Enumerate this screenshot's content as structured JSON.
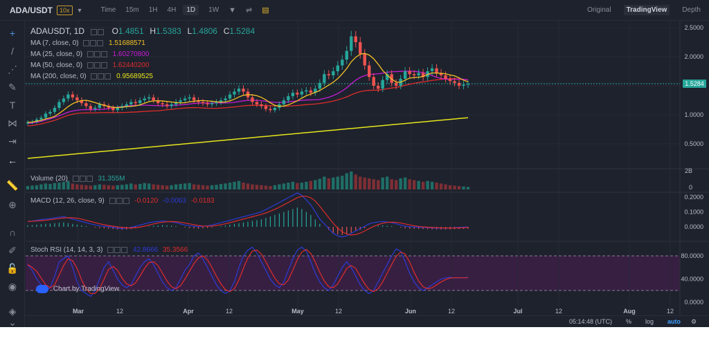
{
  "topbar": {
    "symbol": "ADA/USDT",
    "leverage": "10x",
    "timeframes": [
      "Time",
      "15m",
      "1H",
      "4H",
      "1D",
      "1W"
    ],
    "active_timeframe": "1D",
    "views": [
      "Original",
      "TradingView",
      "Depth"
    ],
    "active_view": "TradingView"
  },
  "legend": {
    "title": "ADAUSDT, 1D",
    "open_label": "O",
    "open": "1.4851",
    "high_label": "H",
    "high": "1.5383",
    "low_label": "L",
    "low": "1.4806",
    "close_label": "C",
    "close": "1.5284",
    "ma": [
      {
        "label": "MA (7, close, 0)",
        "value": "1.51688571",
        "color": "#f7c325"
      },
      {
        "label": "MA (25, close, 0)",
        "value": "1.60270800",
        "color": "#c71bd6"
      },
      {
        "label": "MA (50, close, 0)",
        "value": "1.62440200",
        "color": "#e02c2c"
      },
      {
        "label": "MA (200, close, 0)",
        "value": "0.95689525",
        "color": "#e6e61a"
      }
    ]
  },
  "volume": {
    "label": "Volume (20)",
    "value": "31.355M"
  },
  "macd": {
    "label": "MACD (12, 26, close, 9)",
    "v1": "-0.0120",
    "v2": "-0.0063",
    "v3": "-0.0183"
  },
  "stoch": {
    "label": "Stoch RSI (14, 14, 3, 3)",
    "k": "42.8666",
    "d": "35.3566"
  },
  "watermark": "Chart by TradingView",
  "price_axis": {
    "main": [
      "2.5000",
      "2.0000",
      "1.5000",
      "1.0000",
      "0.5000"
    ],
    "current": "1.5284",
    "volume": [
      "2B",
      "0"
    ],
    "macd": [
      "0.2000",
      "0.1000",
      "0.0000"
    ],
    "stoch": [
      "80.0000",
      "40.0000",
      "0.0000"
    ]
  },
  "time_axis": [
    "Mar",
    "12",
    "Apr",
    "12",
    "May",
    "12",
    "Jun",
    "12",
    "Jul",
    "12",
    "Aug",
    "12"
  ],
  "bottombar": {
    "time": "05:14:48 (UTC)",
    "percent": "%",
    "log": "log",
    "auto": "auto"
  },
  "chart_data": {
    "type": "candlestick",
    "title": "ADAUSDT, 1D",
    "ohlc_last": {
      "open": 1.4851,
      "high": 1.5383,
      "low": 1.4806,
      "close": 1.5284
    },
    "y_ticks": [
      0.5,
      1.0,
      1.5,
      2.0,
      2.5
    ],
    "ylim": [
      0.18,
      2.65
    ],
    "close_series": [
      0.87,
      0.88,
      0.92,
      0.95,
      1.02,
      1.05,
      1.12,
      1.22,
      1.28,
      1.35,
      1.3,
      1.25,
      1.2,
      1.15,
      1.1,
      1.12,
      1.18,
      1.15,
      1.12,
      1.08,
      1.12,
      1.15,
      1.18,
      1.22,
      1.2,
      1.25,
      1.28,
      1.3,
      1.25,
      1.2,
      1.18,
      1.15,
      1.18,
      1.22,
      1.25,
      1.28,
      1.3,
      1.25,
      1.22,
      1.2,
      1.18,
      1.2,
      1.22,
      1.25,
      1.28,
      1.35,
      1.4,
      1.45,
      1.4,
      1.3,
      1.22,
      1.18,
      1.15,
      1.1,
      1.08,
      1.12,
      1.18,
      1.25,
      1.32,
      1.38,
      1.35,
      1.4,
      1.42,
      1.38,
      1.45,
      1.55,
      1.7,
      1.68,
      1.75,
      1.85,
      1.95,
      2.1,
      2.35,
      2.25,
      2.05,
      1.85,
      1.65,
      1.5,
      1.45,
      1.6,
      1.7,
      1.55,
      1.5,
      1.62,
      1.75,
      1.7,
      1.68,
      1.72,
      1.65,
      1.75,
      1.8,
      1.72,
      1.68,
      1.62,
      1.58,
      1.55,
      1.5,
      1.52,
      1.53
    ],
    "volume_series": [
      8,
      9,
      10,
      12,
      14,
      13,
      15,
      16,
      18,
      20,
      14,
      12,
      11,
      10,
      9,
      10,
      12,
      11,
      10,
      9,
      10,
      11,
      12,
      14,
      12,
      13,
      15,
      14,
      12,
      11,
      10,
      9,
      10,
      12,
      13,
      14,
      15,
      12,
      11,
      10,
      9,
      10,
      11,
      13,
      14,
      16,
      18,
      20,
      16,
      14,
      12,
      11,
      10,
      9,
      8,
      10,
      12,
      14,
      16,
      18,
      15,
      16,
      18,
      20,
      22,
      25,
      30,
      26,
      28,
      30,
      32,
      38,
      42,
      35,
      30,
      28,
      26,
      24,
      22,
      28,
      30,
      24,
      22,
      26,
      28,
      24,
      22,
      20,
      18,
      20,
      18,
      16,
      14,
      12,
      10,
      9,
      8,
      7,
      6
    ],
    "macd_hist": [
      0.01,
      0.012,
      0.015,
      0.018,
      0.02,
      0.022,
      0.025,
      0.028,
      0.03,
      0.025,
      0.02,
      0.015,
      0.01,
      0.005,
      0.0,
      -0.005,
      -0.008,
      -0.01,
      -0.012,
      -0.015,
      -0.018,
      -0.02,
      -0.018,
      -0.015,
      -0.01,
      -0.005,
      0.0,
      0.005,
      0.008,
      0.01,
      0.012,
      0.01,
      0.008,
      0.005,
      0.0,
      -0.005,
      -0.008,
      -0.01,
      -0.012,
      -0.01,
      -0.008,
      -0.005,
      0.0,
      0.005,
      0.01,
      0.015,
      0.02,
      0.025,
      0.03,
      0.035,
      0.04,
      0.045,
      0.05,
      0.06,
      0.07,
      0.08,
      0.09,
      0.1,
      0.11,
      0.12,
      0.13,
      0.12,
      0.1,
      0.08,
      0.05,
      0.02,
      0.0,
      -0.02,
      -0.04,
      -0.05,
      -0.055,
      -0.05,
      -0.04,
      -0.03,
      -0.02,
      -0.01,
      0.0,
      0.005,
      0.008,
      0.01,
      0.008,
      0.005,
      0.0,
      -0.005,
      -0.01,
      -0.012,
      -0.013,
      -0.014,
      -0.015,
      -0.016,
      -0.017,
      -0.018,
      -0.018,
      -0.018,
      -0.017,
      -0.016,
      -0.015,
      -0.014,
      -0.013
    ],
    "stoch_k": [
      65,
      55,
      40,
      30,
      20,
      25,
      45,
      70,
      75,
      80,
      60,
      35,
      20,
      15,
      10,
      20,
      40,
      60,
      70,
      55,
      40,
      30,
      25,
      30,
      45,
      60,
      70,
      75,
      65,
      50,
      35,
      25,
      20,
      25,
      40,
      55,
      65,
      80,
      85,
      75,
      60,
      45,
      30,
      20,
      15,
      20,
      35,
      60,
      80,
      90,
      95,
      85,
      70,
      55,
      40,
      30,
      25,
      35,
      55,
      75,
      90,
      95,
      88,
      70,
      50,
      35,
      25,
      20,
      30,
      45,
      60,
      70,
      60,
      45,
      30,
      20,
      15,
      20,
      35,
      50,
      65,
      80,
      92,
      88,
      70,
      50,
      35,
      25,
      20,
      25,
      30,
      35,
      40,
      42,
      43,
      42,
      42,
      42,
      43
    ]
  }
}
